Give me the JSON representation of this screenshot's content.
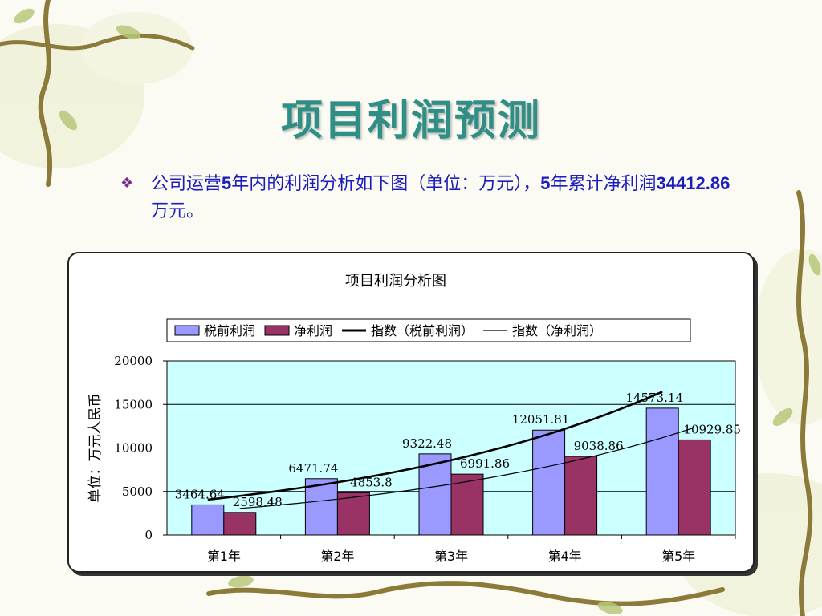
{
  "slide": {
    "title": "项目利润预测",
    "bullet_parts": [
      "公司运营",
      "5",
      "年内的利润分析如下图（单位：万元），",
      "5",
      "年累计净利润",
      "34412.86",
      "万元。"
    ]
  },
  "colors": {
    "title": "#2f8f86",
    "bullet_text": "#1d1dbd",
    "bar_pretax": "#9999ff",
    "bar_net": "#993366",
    "plot_bg": "#ccffff",
    "trend": "#000000"
  },
  "chart_data": {
    "type": "bar",
    "title": "项目利润分析图",
    "ylabel": "单位：万元人民币",
    "xlabel": "",
    "categories": [
      "第1年",
      "第2年",
      "第3年",
      "第4年",
      "第5年"
    ],
    "series": [
      {
        "name": "税前利润",
        "values": [
          3464.64,
          6471.74,
          9322.48,
          12051.81,
          14573.14
        ],
        "labels": [
          "3464.64",
          "6471.74",
          "9322.48",
          "12051.81",
          "14573.14"
        ]
      },
      {
        "name": "净利润",
        "values": [
          2598.48,
          4853.8,
          6991.86,
          9038.86,
          10929.85
        ],
        "labels": [
          "2598.48",
          "4853.8",
          "6991.86",
          "9038.86",
          "10929.85"
        ]
      }
    ],
    "trendlines": [
      {
        "name": "指数（税前利润）",
        "of_series": "税前利润",
        "type": "exponential",
        "weight": "bold"
      },
      {
        "name": "指数（净利润）",
        "of_series": "净利润",
        "type": "exponential",
        "weight": "thin"
      }
    ],
    "ylim": [
      0,
      20000
    ],
    "yticks": [
      "0",
      "5000",
      "10000",
      "15000",
      "20000"
    ],
    "grid": true,
    "legend_position": "top"
  }
}
